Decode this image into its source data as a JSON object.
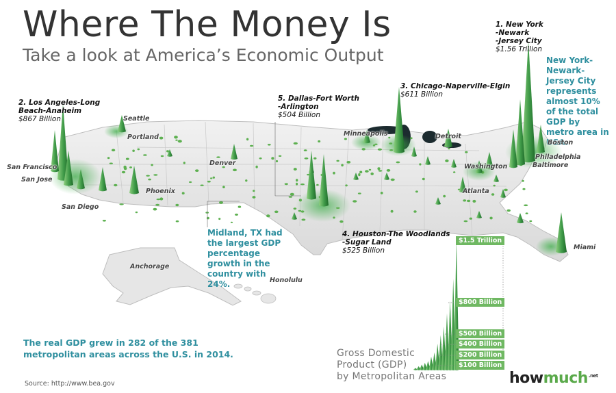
{
  "header": {
    "title": "Where The Money Is",
    "subtitle": "Take a look at America’s Economic Output"
  },
  "metros": [
    {
      "rank_name": "1. New York",
      "line2": "-Newark",
      "line3": "-Jersey City",
      "value": "$1.56 Trillion"
    },
    {
      "rank_name": "2. Los Angeles-Long",
      "line2": "Beach-Anaheim",
      "value": "$867 Billion"
    },
    {
      "rank_name": "3. Chicago-Naperville-Elgin",
      "value": "$611 Billion"
    },
    {
      "rank_name": "4. Houston-The Woodlands",
      "line2": "-Sugar Land",
      "value": "$525 Billion"
    },
    {
      "rank_name": "5. Dallas-Fort Worth",
      "line2": "-Arlington",
      "value": "$504 Billion"
    }
  ],
  "notes": {
    "new_york": "New York-Newark-Jersey City represents almost 10% of the total GDP by metro area in USA.",
    "midland": "Midland, TX had the largest GDP percentage growth in the country with 24%.",
    "real_gdp": "The real GDP grew in 282 of the 381 metropolitan areas across the U.S. in 2014."
  },
  "cities": {
    "seattle": "Seattle",
    "portland": "Portland",
    "san_francisco": "San Francisco",
    "san_jose": "San Jose",
    "san_diego": "San Diego",
    "phoenix": "Phoenix",
    "denver": "Denver",
    "minneapolis": "Minneapolis",
    "detroit": "Detroit",
    "boston": "Boston",
    "philadelphia": "Philadelphia",
    "baltimore": "Baltimore",
    "washington": "Washington",
    "atlanta": "Atlanta",
    "miami": "Miami",
    "anchorage": "Anchorage",
    "honolulu": "Honolulu"
  },
  "legend": {
    "title_line1": "Gross Domestic",
    "title_line2": "Product (GDP)",
    "title_line3": "by Metropolitan Areas",
    "labels": [
      "$1.5 Trillion",
      "$800 Billion",
      "$500 Billion",
      "$400 Billion",
      "$200 Billion",
      "$100 Billion"
    ],
    "spike_values": [
      20,
      40,
      60,
      80,
      100,
      150,
      200,
      300,
      400,
      500,
      650,
      800,
      1050,
      1500
    ]
  },
  "source": "Source: http://www.bea.gov",
  "logo": {
    "part1": "how",
    "part2": "much",
    "suffix": ".net"
  },
  "colors": {
    "accent": "#2f8f9f",
    "spike": "#3f9a48",
    "brand_green": "#5aa94a"
  }
}
